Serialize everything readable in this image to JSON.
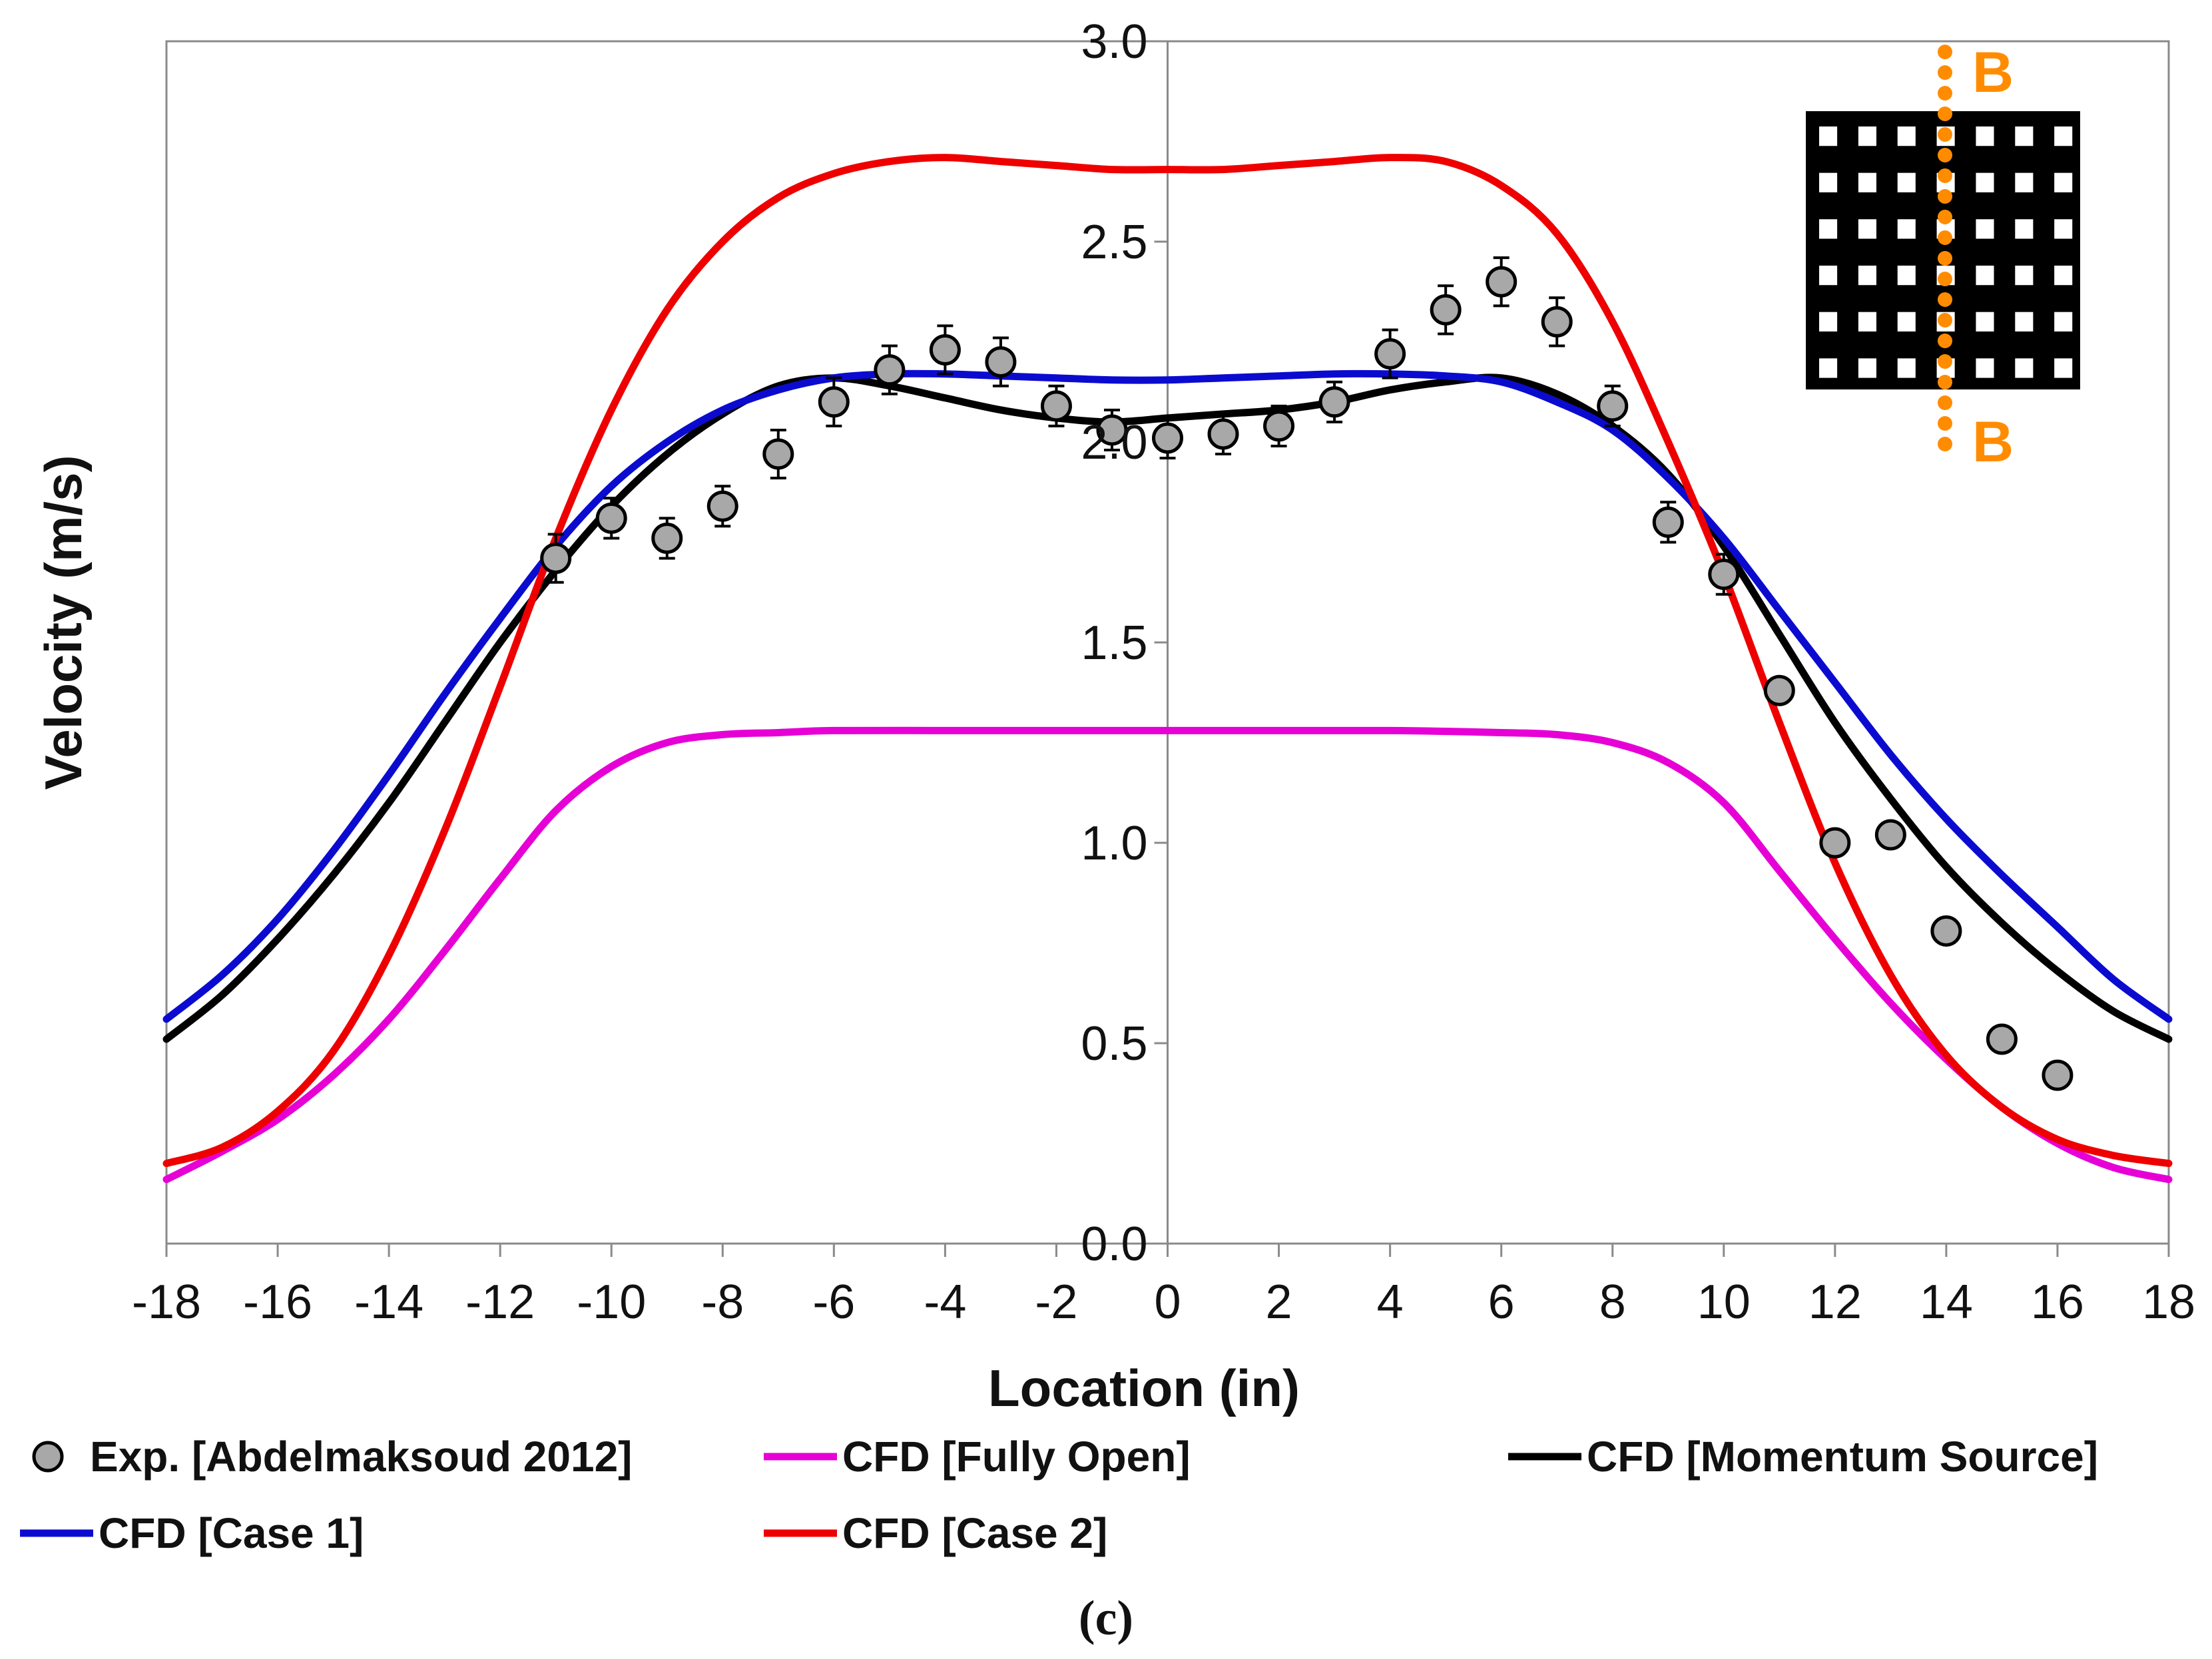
{
  "chart_data": {
    "type": "line",
    "xlabel": "Location (in)",
    "ylabel": "Velocity (m/s)",
    "xlim": [
      -18,
      18
    ],
    "ylim": [
      0,
      3
    ],
    "xticks": [
      "-18",
      "-16",
      "-14",
      "-12",
      "-10",
      "-8",
      "-6",
      "-4",
      "-2",
      "0",
      "2",
      "4",
      "6",
      "8",
      "10",
      "12",
      "14",
      "16",
      "18"
    ],
    "yticks": [
      "0.0",
      "0.5",
      "1.0",
      "1.5",
      "2.0",
      "2.5",
      "3.0"
    ],
    "grid": false,
    "legend_position": "bottom",
    "panel_label": "(c)",
    "inset": {
      "label_top": "B",
      "label_bottom": "B",
      "grid_rows": 6,
      "grid_cols": 7,
      "line_color": "#ff8c00"
    },
    "experimental": {
      "name": "Exp. [Abdelmaksoud 2012]",
      "color": "#a8a8a8",
      "x": [
        -11,
        -10,
        -9,
        -8,
        -7,
        -6,
        -5,
        -4,
        -3,
        -2,
        -1,
        0,
        1,
        2,
        3,
        4,
        5,
        6,
        7,
        8,
        9,
        10,
        11,
        12,
        13,
        14,
        15,
        16
      ],
      "y": [
        1.71,
        1.81,
        1.76,
        1.84,
        1.97,
        2.1,
        2.18,
        2.23,
        2.2,
        2.09,
        2.03,
        2.01,
        2.02,
        2.04,
        2.1,
        2.22,
        2.33,
        2.4,
        2.3,
        2.09,
        1.8,
        1.67,
        1.38,
        1.0,
        1.02,
        0.78,
        0.51,
        0.42
      ],
      "error": [
        0.06,
        0.05,
        0.05,
        0.05,
        0.06,
        0.06,
        0.06,
        0.06,
        0.06,
        0.05,
        0.05,
        0.05,
        0.05,
        0.05,
        0.05,
        0.06,
        0.06,
        0.06,
        0.06,
        0.05,
        0.05,
        0.05,
        0.03,
        0.0,
        0.0,
        0.0,
        0.0,
        0.0
      ]
    },
    "series": [
      {
        "name": "CFD [Fully Open]",
        "color": "#e600d6",
        "x": [
          -18,
          -17,
          -16,
          -15,
          -14,
          -13,
          -12,
          -11,
          -10,
          -9,
          -8,
          -7,
          -6,
          -4,
          -2,
          0,
          2,
          4,
          6,
          7,
          8,
          9,
          10,
          11,
          12,
          13,
          14,
          15,
          16,
          17,
          18
        ],
        "y": [
          0.16,
          0.23,
          0.31,
          0.42,
          0.56,
          0.73,
          0.91,
          1.08,
          1.19,
          1.25,
          1.27,
          1.275,
          1.28,
          1.28,
          1.28,
          1.28,
          1.28,
          1.28,
          1.275,
          1.27,
          1.25,
          1.2,
          1.1,
          0.93,
          0.76,
          0.6,
          0.46,
          0.34,
          0.25,
          0.19,
          0.16
        ]
      },
      {
        "name": "CFD [Momentum Source]",
        "color": "#000000",
        "x": [
          -18,
          -17,
          -16,
          -15,
          -14,
          -13,
          -12,
          -11,
          -10,
          -9,
          -8,
          -7,
          -6,
          -5,
          -4,
          -3,
          -2,
          -1,
          0,
          1,
          2,
          3,
          4,
          5,
          6,
          7,
          8,
          9,
          10,
          11,
          12,
          13,
          14,
          15,
          16,
          17,
          18
        ],
        "y": [
          0.51,
          0.62,
          0.76,
          0.92,
          1.1,
          1.3,
          1.5,
          1.68,
          1.84,
          1.97,
          2.07,
          2.14,
          2.16,
          2.14,
          2.11,
          2.08,
          2.06,
          2.05,
          2.06,
          2.07,
          2.08,
          2.1,
          2.13,
          2.15,
          2.16,
          2.12,
          2.04,
          1.92,
          1.74,
          1.52,
          1.3,
          1.11,
          0.94,
          0.8,
          0.68,
          0.58,
          0.51
        ]
      },
      {
        "name": "CFD [Case 1]",
        "color": "#0b0bd0",
        "x": [
          -18,
          -17,
          -16,
          -15,
          -14,
          -13,
          -12,
          -11,
          -10,
          -9,
          -8,
          -7,
          -6,
          -5,
          -4,
          -3,
          -2,
          -1,
          0,
          1,
          2,
          3,
          4,
          5,
          6,
          7,
          8,
          9,
          10,
          11,
          12,
          13,
          14,
          15,
          16,
          17,
          18
        ],
        "y": [
          0.56,
          0.67,
          0.81,
          0.98,
          1.17,
          1.37,
          1.56,
          1.74,
          1.89,
          2.0,
          2.08,
          2.13,
          2.16,
          2.17,
          2.17,
          2.165,
          2.16,
          2.155,
          2.155,
          2.16,
          2.165,
          2.17,
          2.17,
          2.165,
          2.15,
          2.1,
          2.03,
          1.91,
          1.76,
          1.58,
          1.4,
          1.22,
          1.06,
          0.92,
          0.79,
          0.66,
          0.56
        ]
      },
      {
        "name": "CFD [Case 2]",
        "color": "#ee0000",
        "x": [
          -18,
          -17,
          -16,
          -15,
          -14,
          -13,
          -12,
          -11,
          -10,
          -9,
          -8,
          -7,
          -6,
          -5,
          -4,
          -3,
          -2,
          -1,
          0,
          1,
          2,
          3,
          4,
          5,
          6,
          7,
          8,
          9,
          10,
          11,
          12,
          13,
          14,
          15,
          16,
          17,
          18
        ],
        "y": [
          0.2,
          0.24,
          0.33,
          0.48,
          0.72,
          1.03,
          1.39,
          1.76,
          2.08,
          2.33,
          2.5,
          2.61,
          2.67,
          2.7,
          2.71,
          2.7,
          2.69,
          2.68,
          2.68,
          2.68,
          2.69,
          2.7,
          2.71,
          2.7,
          2.64,
          2.52,
          2.3,
          2.0,
          1.67,
          1.3,
          0.95,
          0.67,
          0.47,
          0.34,
          0.26,
          0.22,
          0.2
        ]
      }
    ]
  }
}
